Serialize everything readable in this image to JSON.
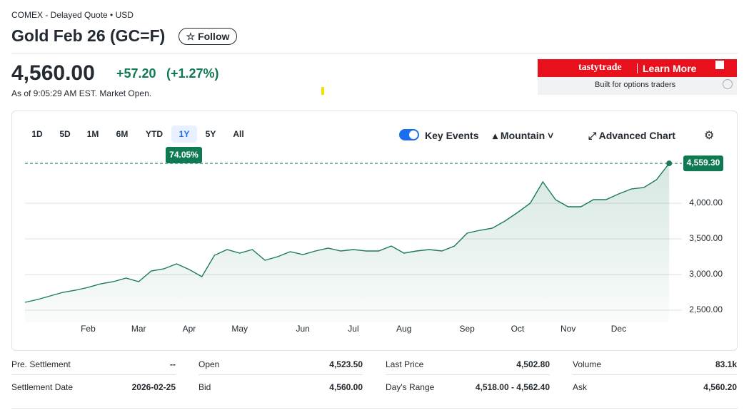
{
  "header": {
    "exchange": "COMEX - Delayed Quote • USD",
    "title": "Gold Feb 26 (GC=F)",
    "follow": "Follow"
  },
  "quote": {
    "price": "4,560.00",
    "change": "+57.20",
    "change_percent": "(+1.27%)",
    "as_of": "As of 9:05:29 AM EST. Market Open."
  },
  "ad": {
    "brand": "tastytrade",
    "cta": "Learn More",
    "tagline": "Built for options traders"
  },
  "chart_toolbar": {
    "ranges": [
      "1D",
      "5D",
      "1M",
      "6M",
      "YTD",
      "1Y",
      "5Y",
      "All"
    ],
    "selected": "1Y",
    "range_change": "74.05%",
    "key_events": "Key Events",
    "chart_style": "Mountain",
    "advanced_chart": "Advanced Chart"
  },
  "chart_data": {
    "type": "area",
    "categories": [
      null,
      null,
      null,
      null,
      null,
      "Feb",
      null,
      null,
      null,
      "Mar",
      null,
      null,
      null,
      "Apr",
      null,
      null,
      null,
      "May",
      null,
      null,
      null,
      null,
      "Jun",
      null,
      null,
      null,
      "Jul",
      null,
      null,
      null,
      "Aug",
      null,
      null,
      null,
      null,
      "Sep",
      null,
      null,
      null,
      "Oct",
      null,
      null,
      null,
      "Nov",
      null,
      null,
      null,
      "Dec",
      null,
      null,
      null,
      null
    ],
    "values": [
      2610,
      2650,
      2700,
      2750,
      2780,
      2820,
      2870,
      2900,
      2950,
      2900,
      3050,
      3080,
      3150,
      3070,
      2970,
      3270,
      3350,
      3300,
      3350,
      3200,
      3250,
      3320,
      3280,
      3330,
      3370,
      3330,
      3350,
      3330,
      3330,
      3400,
      3300,
      3330,
      3350,
      3330,
      3400,
      3580,
      3620,
      3650,
      3750,
      3870,
      4000,
      4300,
      4050,
      3950,
      3950,
      4050,
      4050,
      4130,
      4200,
      4220,
      4330,
      4559.3
    ],
    "value_labels": [
      null,
      null,
      null,
      null,
      null,
      null,
      null,
      null,
      null,
      null,
      null,
      null,
      null,
      null,
      null,
      null,
      null,
      null,
      null,
      null,
      null,
      null,
      null,
      null,
      null,
      null,
      null,
      null,
      null,
      null,
      null,
      null,
      null,
      null,
      null,
      null,
      null,
      null,
      null,
      null,
      null,
      null,
      null,
      null,
      null,
      null,
      null,
      null,
      null,
      null,
      null,
      "4,559.30"
    ],
    "color": "#1a7a5a",
    "ylim": [
      2330,
      4800
    ],
    "yticks": [
      {
        "value": 2500,
        "label": "2,500.00"
      },
      {
        "value": 3000,
        "label": "3,000.00"
      },
      {
        "value": 3500,
        "label": "3,500.00"
      },
      {
        "value": 4000,
        "label": "4,000.00"
      }
    ],
    "grid": true
  },
  "stats": {
    "rows": [
      [
        [
          "Pre. Settlement",
          "--"
        ],
        [
          "Open",
          "4,523.50"
        ],
        [
          "Last Price",
          "4,502.80"
        ],
        [
          "Volume",
          "83.1k"
        ]
      ],
      [
        [
          "Settlement Date",
          "2026-02-25"
        ],
        [
          "Bid",
          "4,560.00"
        ],
        [
          "Day's Range",
          "4,518.00 - 4,562.40"
        ],
        [
          "Ask",
          "4,560.20"
        ]
      ]
    ]
  }
}
